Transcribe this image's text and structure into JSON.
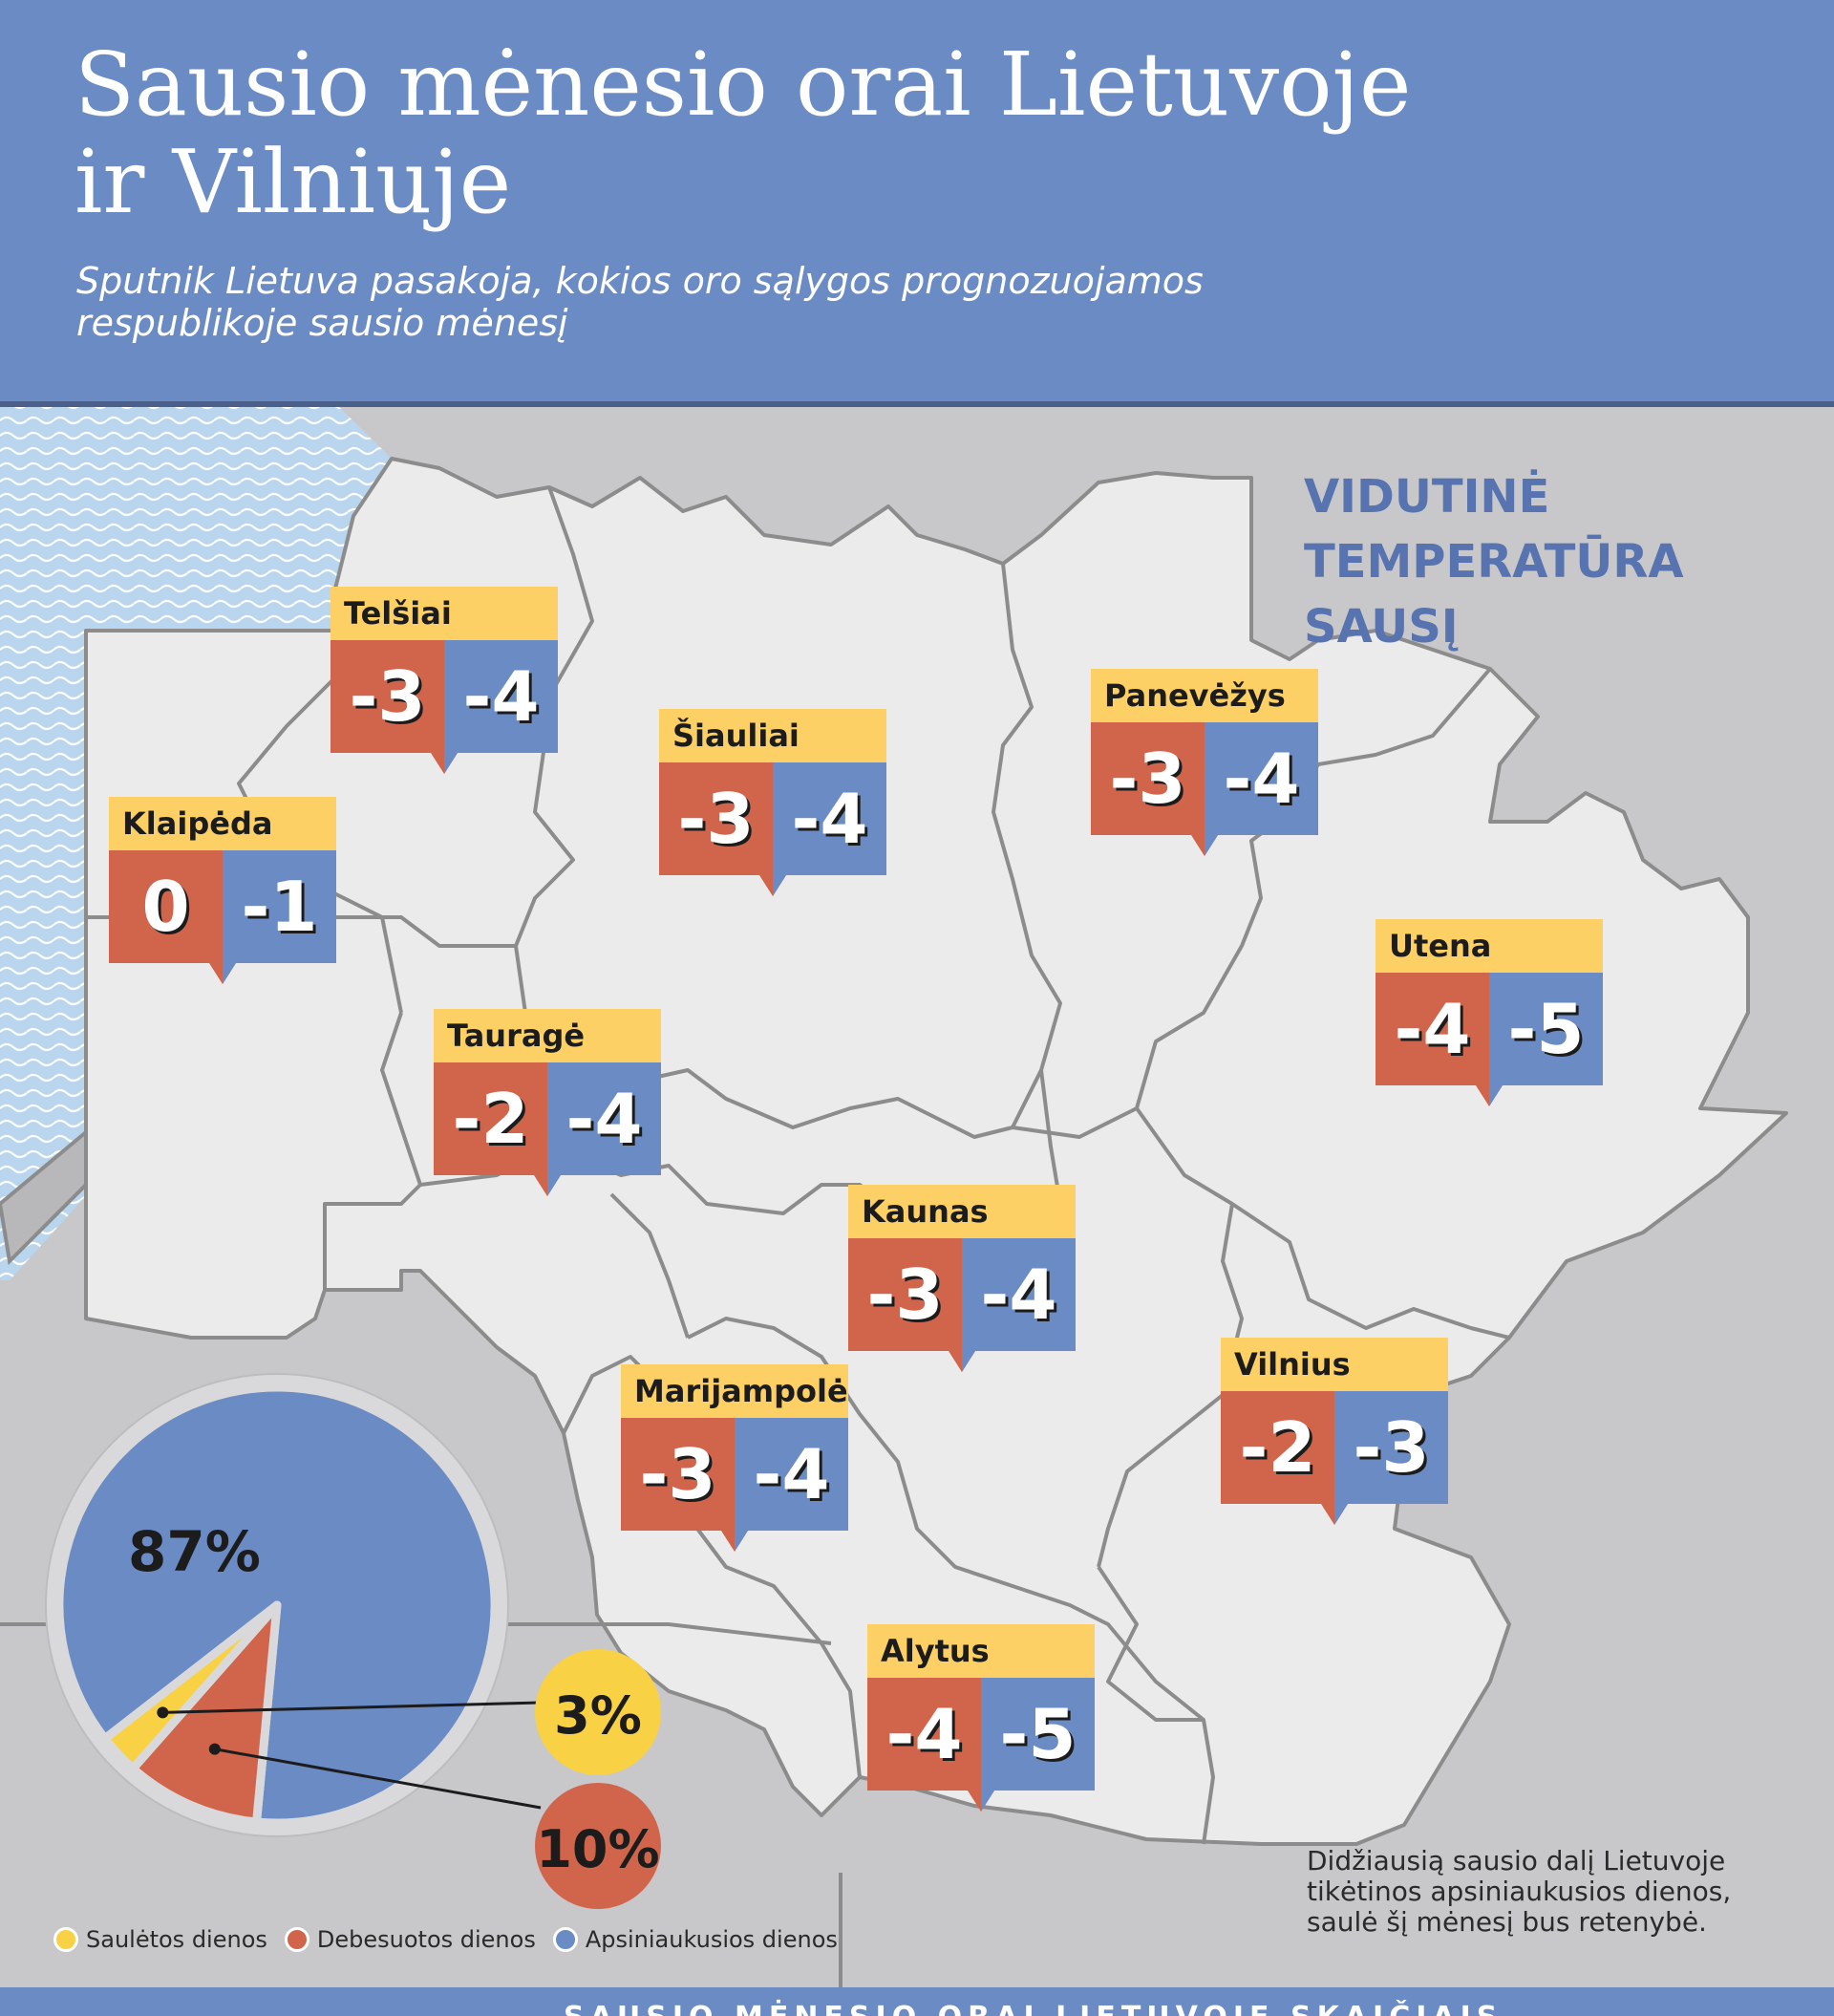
{
  "header": {
    "title_line1": "Sausio mėnesio orai Lietuvoje",
    "title_line2": "ir Vilniuje",
    "subtitle_line1": "Sputnik Lietuva pasakoja, kokios oro sąlygos prognozuojamos",
    "subtitle_line2": "respublikoje sausio mėnesį"
  },
  "map": {
    "title_line1": "VIDUTINĖ",
    "title_line2": "TEMPERATŪRA SAUSĮ",
    "colors": {
      "land": "#ebebeb",
      "border": "#8c8c8c",
      "outside": "#c8c8ca",
      "sea": "#b9d6ee",
      "wave": "#ffffff"
    }
  },
  "cities": [
    {
      "name": "Telšiai",
      "t1": "-3",
      "t2": "-4"
    },
    {
      "name": "Šiauliai",
      "t1": "-3",
      "t2": "-4"
    },
    {
      "name": "Panevėžys",
      "t1": "-3",
      "t2": "-4"
    },
    {
      "name": "Klaipėda",
      "t1": "0",
      "t2": "-1"
    },
    {
      "name": "Utena",
      "t1": "-4",
      "t2": "-5"
    },
    {
      "name": "Tauragė",
      "t1": "-2",
      "t2": "-4"
    },
    {
      "name": "Kaunas",
      "t1": "-3",
      "t2": "-4"
    },
    {
      "name": "Vilnius",
      "t1": "-2",
      "t2": "-3"
    },
    {
      "name": "Marijampolė",
      "t1": "-3",
      "t2": "-4"
    },
    {
      "name": "Alytus",
      "t1": "-4",
      "t2": "-5"
    }
  ],
  "callout_colors": {
    "name_bg": "#fdd066",
    "min_bg": "#d0654c",
    "max_bg": "#6a8bc3"
  },
  "chart_data": {
    "type": "pie",
    "slices": [
      {
        "label": "Apsiniaukusios dienos",
        "value": 87,
        "display": "87%",
        "color": "#6a8bc3"
      },
      {
        "label": "Debesuotos dienos",
        "value": 10,
        "display": "10%",
        "color": "#d0654c"
      },
      {
        "label": "Saulėtos dienos",
        "value": 3,
        "display": "3%",
        "color": "#f8d244"
      }
    ],
    "legend_placement": "bottom-left"
  },
  "legend": [
    {
      "label": "Saulėtos dienos",
      "color": "#f8d244"
    },
    {
      "label": "Debesuotos dienos",
      "color": "#d0654c"
    },
    {
      "label": "Apsiniaukusios dienos",
      "color": "#6a8bc3"
    }
  ],
  "note": "Didžiausią sausio dalį Lietuvoje tikėtinos apsiniaukusios  dienos, saulė šį mėnesį bus retenybė.",
  "footer": {
    "text": "SAUSIO MĖNESIO ORAI LIETUVOJE SKAIČIAIS"
  }
}
